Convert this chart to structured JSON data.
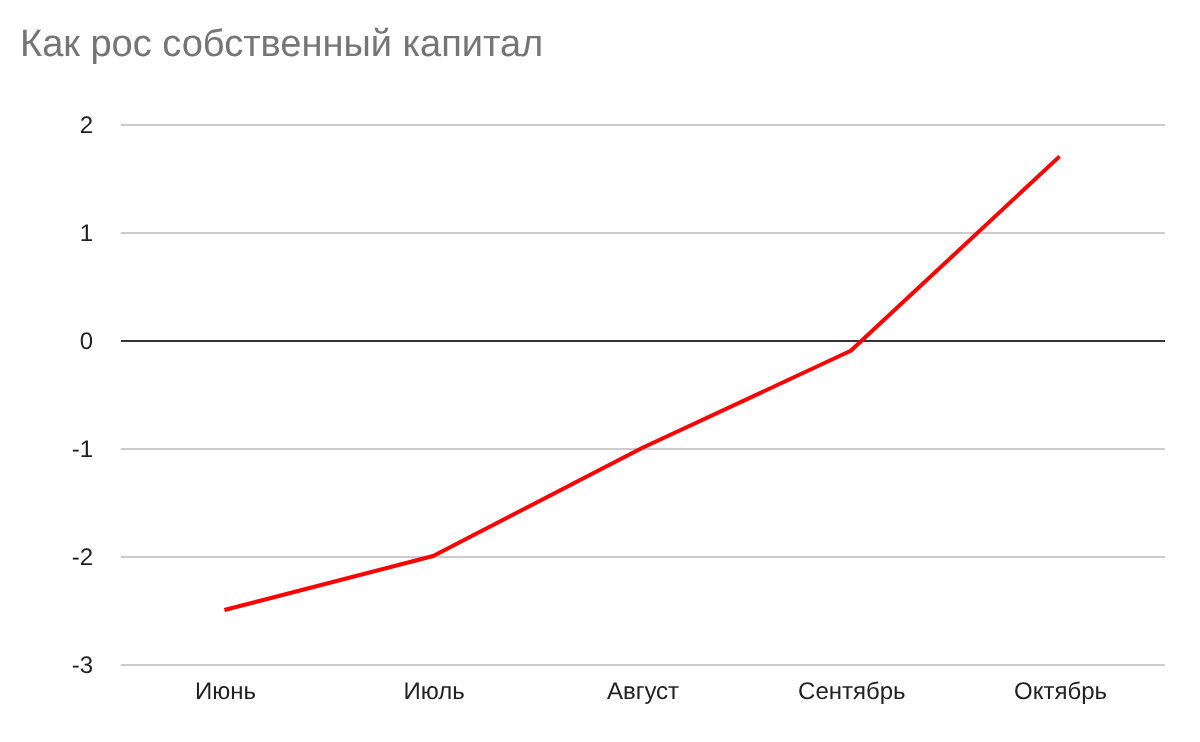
{
  "chart_data": {
    "type": "line",
    "title": "Как рос собственный капитал",
    "categories": [
      "Июнь",
      "Июль",
      "Август",
      "Сентябрь",
      "Октябрь"
    ],
    "series": [
      {
        "color": "#ff0000",
        "values": [
          -2.5,
          -2,
          -1,
          -0.1,
          1.7
        ]
      }
    ],
    "ylim": [
      -3,
      2
    ],
    "yticks": [
      -3,
      -2,
      -1,
      0,
      1,
      2
    ],
    "grid": "y",
    "marker": "none",
    "line_style": "solid"
  }
}
